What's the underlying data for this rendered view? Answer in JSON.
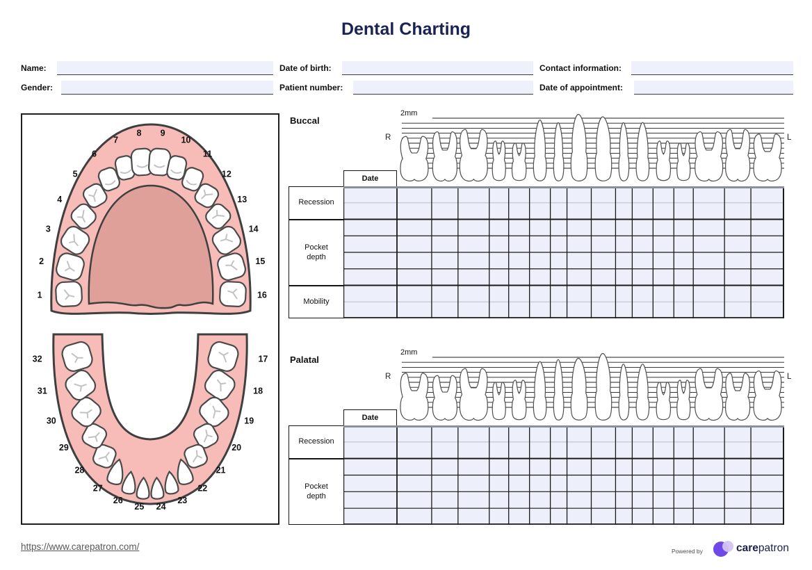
{
  "title": "Dental Charting",
  "form": {
    "name_label": "Name:",
    "name_value": "",
    "gender_label": "Gender:",
    "gender_value": "",
    "dob_label": "Date of birth:",
    "dob_value": "",
    "patient_number_label": "Patient number:",
    "patient_number_value": "",
    "contact_label": "Contact information:",
    "contact_value": "",
    "appointment_label": "Date of appointment:",
    "appointment_value": ""
  },
  "tooth_chart": {
    "upper_teeth": [
      "1",
      "2",
      "3",
      "4",
      "5",
      "6",
      "7",
      "8",
      "9",
      "10",
      "11",
      "12",
      "13",
      "14",
      "15",
      "16"
    ],
    "lower_teeth": [
      "17",
      "18",
      "19",
      "20",
      "21",
      "22",
      "23",
      "24",
      "25",
      "26",
      "27",
      "28",
      "29",
      "30",
      "31",
      "32"
    ]
  },
  "sections": {
    "buccal": {
      "label": "Buccal",
      "scale_label": "2mm",
      "left_marker": "R",
      "right_marker": "L",
      "date_label": "Date",
      "rows": [
        {
          "label": "Recession",
          "sublines": 2
        },
        {
          "label": "Pocket depth",
          "sublines": 4
        },
        {
          "label": "Mobility",
          "sublines": 2
        }
      ]
    },
    "palatal": {
      "label": "Palatal",
      "scale_label": "2mm",
      "left_marker": "R",
      "right_marker": "L",
      "date_label": "Date",
      "rows": [
        {
          "label": "Recession",
          "sublines": 2
        },
        {
          "label": "Pocket depth",
          "sublines": 4
        }
      ]
    }
  },
  "footer": {
    "url": "https://www.carepatron.com/",
    "powered_by": "Powered by",
    "brand_bold": "care",
    "brand_light": "patron"
  },
  "colors": {
    "accent_navy": "#1a2353",
    "input_bg": "#eef1fb",
    "grid_bg": "#edf0fa",
    "gum_pink": "#f7bcb8",
    "palate_rose": "#dfa09a",
    "outline_dark": "#3f3f3f",
    "logo_purple": "#7048e8",
    "logo_lavender": "#d3c4f3"
  }
}
